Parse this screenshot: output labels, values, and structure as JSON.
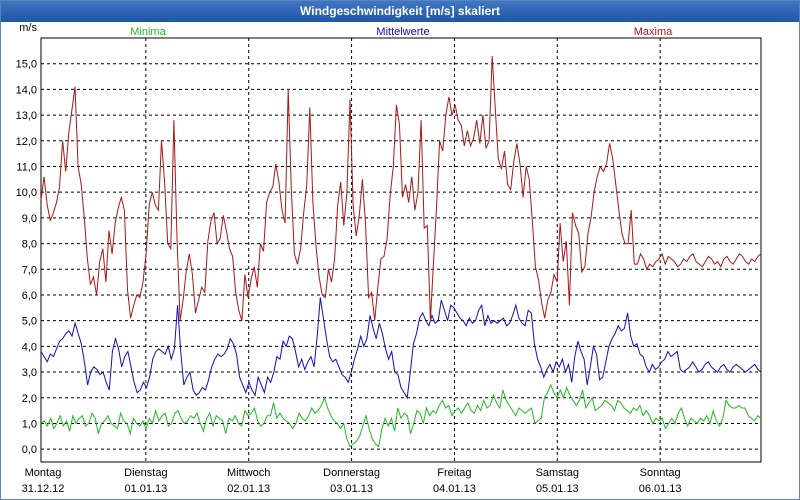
{
  "window": {
    "title": "Windgeschwindigkeit [m/s] skaliert"
  },
  "colors": {
    "min": "#22b822",
    "mean": "#1010b8",
    "max": "#a81818",
    "grid": "#000000"
  },
  "chart_data": {
    "type": "line",
    "title": "Windgeschwindigkeit [m/s] skaliert",
    "ylabel": "m/s",
    "ylim": [
      -0.5,
      16.0
    ],
    "yticks": [
      0.0,
      1.0,
      2.0,
      3.0,
      4.0,
      5.0,
      6.0,
      7.0,
      8.0,
      9.0,
      10.0,
      11.0,
      12.0,
      13.0,
      14.0,
      15.0
    ],
    "ytick_labels": [
      "0,0",
      "1,0",
      "2,0",
      "3,0",
      "4,0",
      "5,0",
      "6,0",
      "7,0",
      "8,0",
      "9,0",
      "10,0",
      "11,0",
      "12,0",
      "13,0",
      "14,0",
      "15,0"
    ],
    "grid": true,
    "legend_position": "top",
    "days": [
      {
        "weekday": "Montag",
        "date": "31.12.12"
      },
      {
        "weekday": "Dienstag",
        "date": "01.01.13"
      },
      {
        "weekday": "Mittwoch",
        "date": "02.01.13"
      },
      {
        "weekday": "Donnerstag",
        "date": "03.01.13"
      },
      {
        "weekday": "Freitag",
        "date": "04.01.13"
      },
      {
        "weekday": "Samstag",
        "date": "05.01.13"
      },
      {
        "weekday": "Sonntag",
        "date": "06.01.13"
      }
    ],
    "series": [
      {
        "name": "Minima",
        "color": "#22b822",
        "values": [
          1.0,
          1.1,
          0.9,
          1.2,
          0.8,
          1.0,
          1.3,
          0.9,
          1.1,
          0.7,
          1.3,
          1.0,
          1.2,
          1.3,
          0.9,
          1.0,
          1.4,
          1.2,
          0.6,
          1.0,
          1.1,
          1.3,
          1.0,
          0.9,
          0.8,
          1.4,
          1.1,
          1.0,
          0.6,
          1.2,
          1.0,
          0.9,
          1.1,
          0.8,
          1.2,
          1.0,
          1.5,
          1.1,
          1.3,
          1.4,
          0.9,
          1.0,
          1.4,
          1.5,
          1.2,
          1.0,
          1.1,
          1.3,
          1.2,
          1.4,
          1.0,
          0.7,
          1.2,
          1.4,
          0.9,
          1.3,
          1.2,
          1.1,
          0.6,
          1.2,
          1.1,
          1.3,
          1.0,
          0.9,
          1.5,
          1.3,
          1.4,
          1.6,
          1.1,
          0.9,
          1.0,
          1.3,
          1.3,
          1.8,
          1.2,
          1.4,
          1.2,
          1.1,
          1.0,
          0.8,
          1.0,
          1.4,
          1.2,
          1.1,
          1.3,
          1.6,
          1.4,
          1.5,
          1.7,
          2.0,
          1.6,
          1.3,
          1.1,
          1.0,
          0.8,
          1.0,
          0.4,
          0.1,
          0.2,
          0.3,
          0.5,
          0.9,
          1.3,
          0.8,
          0.4,
          0.2,
          0.1,
          0.8,
          1.2,
          0.9,
          1.2,
          0.7,
          1.6,
          1.2,
          1.4,
          1.3,
          0.6,
          1.0,
          1.5,
          1.4,
          1.0,
          1.6,
          1.3,
          1.5,
          1.4,
          1.7,
          1.9,
          1.6,
          1.7,
          1.3,
          1.5,
          1.6,
          1.4,
          1.6,
          1.8,
          1.5,
          1.4,
          1.7,
          1.5,
          1.9,
          1.6,
          1.7,
          2.1,
          1.8,
          1.6,
          2.3,
          1.9,
          1.7,
          1.5,
          1.3,
          1.6,
          1.5,
          1.4,
          1.5,
          1.6,
          1.0,
          1.1,
          1.2,
          2.0,
          2.2,
          2.5,
          2.2,
          2.0,
          2.3,
          2.0,
          2.4,
          2.1,
          1.9,
          1.7,
          1.9,
          2.3,
          1.6,
          1.8,
          2.0,
          1.5,
          1.6,
          1.7,
          1.9,
          1.8,
          1.7,
          1.5,
          1.9,
          1.8,
          1.6,
          1.5,
          1.4,
          1.6,
          1.5,
          1.7,
          1.3,
          1.5,
          1.3,
          1.0,
          1.2,
          1.1,
          1.2,
          0.8,
          1.0,
          1.2,
          1.0,
          1.4,
          1.6,
          1.2,
          0.9,
          1.2,
          1.1,
          1.0,
          1.2,
          1.1,
          1.3,
          1.0,
          1.5,
          1.1,
          0.9,
          1.2,
          1.9,
          1.7,
          1.6,
          1.6,
          1.7,
          1.6,
          1.6,
          1.3,
          1.2,
          1.1,
          1.3,
          1.2
        ]
      },
      {
        "name": "Mittelwerte",
        "color": "#1010b8",
        "values": [
          3.8,
          3.6,
          3.4,
          3.7,
          3.6,
          3.9,
          4.2,
          4.3,
          4.5,
          4.6,
          4.4,
          4.9,
          4.5,
          4.1,
          3.4,
          2.5,
          3.0,
          3.2,
          3.1,
          2.9,
          3.0,
          2.6,
          2.3,
          3.8,
          4.3,
          3.9,
          3.2,
          3.6,
          3.8,
          3.2,
          2.6,
          2.2,
          2.3,
          2.6,
          2.4,
          2.8,
          3.5,
          3.8,
          3.9,
          3.8,
          3.7,
          4.0,
          3.5,
          3.9,
          5.6,
          3.8,
          2.5,
          2.8,
          3.0,
          2.3,
          2.1,
          2.2,
          2.4,
          2.3,
          2.7,
          3.2,
          3.5,
          3.7,
          3.6,
          3.7,
          3.9,
          4.3,
          4.1,
          3.7,
          2.8,
          2.5,
          2.2,
          2.6,
          2.3,
          2.1,
          2.8,
          2.5,
          2.2,
          2.8,
          2.6,
          3.0,
          3.6,
          3.5,
          4.2,
          4.0,
          4.4,
          4.3,
          3.8,
          3.2,
          3.5,
          3.1,
          3.4,
          3.6,
          3.2,
          4.4,
          5.9,
          5.1,
          4.3,
          3.6,
          3.4,
          3.5,
          3.2,
          2.9,
          2.8,
          2.6,
          3.0,
          3.5,
          3.9,
          4.4,
          4.0,
          4.3,
          5.2,
          4.7,
          4.3,
          4.9,
          4.5,
          3.9,
          3.5,
          3.8,
          3.0,
          2.9,
          2.4,
          2.2,
          2.0,
          3.0,
          4.1,
          4.5,
          5.1,
          5.3,
          5.0,
          4.8,
          5.2,
          4.9,
          5.0,
          5.8,
          5.4,
          5.0,
          5.6,
          5.5,
          5.3,
          5.1,
          5.0,
          4.8,
          5.1,
          4.9,
          5.0,
          5.4,
          5.6,
          4.8,
          5.2,
          4.9,
          5.0,
          4.9,
          5.0,
          5.1,
          4.8,
          4.9,
          5.2,
          5.6,
          5.1,
          4.9,
          4.8,
          5.4,
          5.3,
          4.1,
          3.5,
          3.2,
          2.8,
          3.1,
          3.3,
          3.0,
          3.4,
          3.2,
          3.5,
          3.0,
          3.3,
          2.6,
          3.6,
          4.2,
          3.8,
          3.5,
          2.5,
          3.2,
          4.0,
          3.7,
          2.7,
          2.8,
          3.4,
          4.0,
          4.3,
          4.5,
          4.8,
          4.6,
          4.7,
          5.3,
          4.4,
          4.0,
          4.1,
          3.7,
          3.6,
          3.2,
          3.0,
          3.3,
          3.1,
          3.2,
          3.4,
          3.5,
          3.8,
          3.6,
          3.7,
          3.8,
          3.1,
          3.0,
          3.1,
          3.2,
          3.4,
          3.2,
          3.0,
          3.1,
          3.3,
          3.4,
          3.2,
          3.1,
          3.0,
          3.2,
          3.3,
          3.1,
          3.0,
          3.2,
          3.3,
          3.2,
          3.1,
          3.0,
          3.1,
          3.2,
          3.3,
          3.1,
          3.0
        ]
      },
      {
        "name": "Maxima",
        "color": "#a81818",
        "values": [
          9.7,
          10.6,
          9.5,
          8.9,
          9.2,
          9.6,
          10.2,
          12.0,
          10.8,
          12.3,
          13.2,
          14.1,
          11.0,
          10.3,
          9.0,
          7.4,
          6.4,
          6.7,
          6.0,
          7.3,
          7.8,
          6.5,
          8.5,
          7.6,
          8.8,
          9.4,
          9.8,
          9.3,
          6.2,
          5.1,
          5.6,
          6.0,
          5.9,
          6.5,
          7.6,
          9.5,
          10.0,
          9.5,
          9.3,
          12.0,
          10.4,
          8.0,
          7.8,
          12.8,
          8.2,
          5.0,
          5.8,
          6.9,
          7.6,
          6.8,
          5.3,
          5.8,
          6.3,
          6.1,
          8.1,
          8.9,
          9.2,
          8.0,
          8.2,
          9.1,
          8.5,
          7.8,
          7.5,
          6.1,
          5.4,
          5.0,
          6.8,
          5.9,
          6.6,
          7.1,
          6.3,
          8.0,
          7.7,
          9.6,
          10.0,
          10.2,
          11.1,
          10.4,
          9.3,
          8.8,
          14.0,
          10.1,
          7.6,
          7.2,
          7.8,
          9.2,
          10.3,
          13.3,
          9.6,
          7.9,
          6.7,
          6.0,
          5.9,
          7.0,
          6.5,
          7.4,
          9.5,
          10.4,
          8.7,
          10.0,
          13.6,
          9.5,
          8.3,
          9.1,
          10.5,
          8.8,
          5.9,
          6.1,
          5.0,
          6.3,
          7.4,
          7.5,
          8.2,
          9.9,
          11.0,
          13.4,
          12.6,
          9.8,
          10.3,
          9.6,
          10.6,
          9.3,
          10.0,
          12.8,
          8.6,
          8.7,
          5.0,
          7.2,
          9.4,
          12.0,
          11.6,
          13.0,
          13.7,
          13.0,
          13.4,
          12.8,
          12.6,
          11.8,
          12.4,
          11.8,
          12.1,
          12.8,
          11.9,
          13.0,
          11.7,
          12.0,
          15.3,
          13.3,
          11.3,
          10.9,
          11.6,
          10.3,
          10.1,
          11.2,
          11.9,
          11.1,
          9.8,
          11.0,
          10.5,
          8.9,
          7.1,
          6.6,
          5.7,
          5.1,
          5.8,
          6.1,
          6.8,
          6.5,
          8.8,
          7.3,
          8.1,
          5.6,
          9.2,
          8.7,
          8.4,
          6.9,
          7.1,
          8.4,
          9.0,
          10.0,
          10.6,
          11.0,
          10.8,
          11.1,
          11.9,
          11.3,
          10.3,
          9.3,
          8.4,
          8.0,
          8.0,
          9.3,
          7.2,
          7.2,
          7.6,
          7.4,
          7.0,
          7.2,
          7.1,
          7.3,
          7.4,
          7.6,
          7.2,
          7.5,
          7.4,
          7.3,
          7.1,
          7.2,
          7.4,
          7.3,
          7.5,
          7.6,
          7.3,
          7.2,
          7.1,
          7.3,
          7.5,
          7.4,
          7.2,
          7.3,
          7.1,
          7.4,
          7.5,
          7.3,
          7.2,
          7.4,
          7.6,
          7.5,
          7.3,
          7.2,
          7.4,
          7.3,
          7.5,
          7.6
        ]
      }
    ]
  }
}
